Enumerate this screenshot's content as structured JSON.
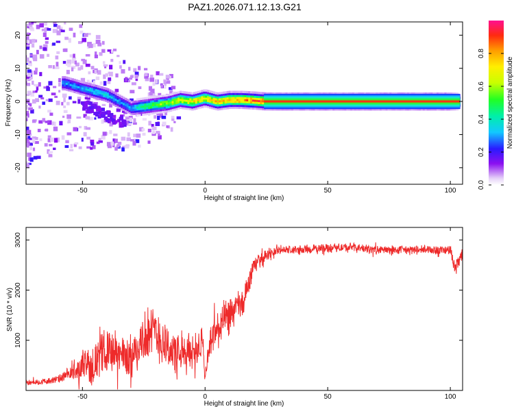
{
  "figure": {
    "title": "PAZ1.2026.071.12.13.G21"
  },
  "chart_data": [
    {
      "type": "heatmap",
      "title": "PAZ1.2026.071.12.13.G21",
      "xlabel": "Height of straight line (km)",
      "ylabel": "Frequency (Hz)",
      "xlim": [
        -73,
        105
      ],
      "ylim": [
        -25,
        24
      ],
      "xticks": [
        -50,
        0,
        50,
        100
      ],
      "yticks": [
        -20,
        -10,
        0,
        10,
        20
      ],
      "colorbar": {
        "label": "Normalized spectral amplitude",
        "range": [
          0,
          1
        ],
        "ticks": [
          0.0,
          0.2,
          0.4,
          0.6,
          0.8
        ]
      },
      "ridge": {
        "description": "dominant frequency of the main spectral peak vs height",
        "x": [
          -57,
          -50,
          -45,
          -40,
          -35,
          -30,
          -25,
          -20,
          -15,
          -10,
          -5,
          0,
          5,
          10,
          15,
          20,
          25,
          50,
          100,
          104
        ],
        "frequency": [
          5.5,
          4.0,
          3.0,
          2.0,
          0.0,
          -2.0,
          -1.5,
          -1.0,
          -0.5,
          0.5,
          0.0,
          1.0,
          0.0,
          0.5,
          0.5,
          0.3,
          0.0,
          0.0,
          0.0,
          0.0
        ],
        "amplitude": [
          0.3,
          0.3,
          0.35,
          0.35,
          0.3,
          0.3,
          0.5,
          0.55,
          0.6,
          0.65,
          0.7,
          0.7,
          0.75,
          0.8,
          0.85,
          0.85,
          0.9,
          0.9,
          0.9,
          0.3
        ]
      }
    },
    {
      "type": "line",
      "xlabel": "Height of straight line (km)",
      "ylabel": "SNR (10 * v/v)",
      "xlim": [
        -73,
        105
      ],
      "ylim": [
        0,
        3250
      ],
      "xticks": [
        -50,
        0,
        50,
        100
      ],
      "yticks": [
        1000,
        2000,
        3000
      ],
      "series": [
        {
          "name": "SNR",
          "color": "#ee2a2a",
          "x": [
            -73,
            -65,
            -60,
            -55,
            -50,
            -45,
            -40,
            -35,
            -30,
            -25,
            -20,
            -15,
            -10,
            -5,
            -1,
            0,
            2,
            5,
            10,
            15,
            20,
            25,
            30,
            40,
            50,
            60,
            70,
            80,
            90,
            100,
            102,
            105
          ],
          "y": [
            150,
            180,
            220,
            330,
            450,
            550,
            850,
            700,
            650,
            1050,
            1150,
            850,
            650,
            800,
            950,
            200,
            1000,
            1200,
            1500,
            1700,
            2500,
            2700,
            2800,
            2800,
            2850,
            2850,
            2800,
            2800,
            2800,
            2800,
            2400,
            2750
          ],
          "noise_amplitude": [
            60,
            70,
            90,
            170,
            330,
            420,
            520,
            500,
            480,
            560,
            620,
            520,
            450,
            440,
            400,
            100,
            450,
            480,
            420,
            380,
            180,
            140,
            110,
            100,
            100,
            100,
            100,
            100,
            100,
            120,
            220,
            180
          ]
        }
      ]
    }
  ]
}
